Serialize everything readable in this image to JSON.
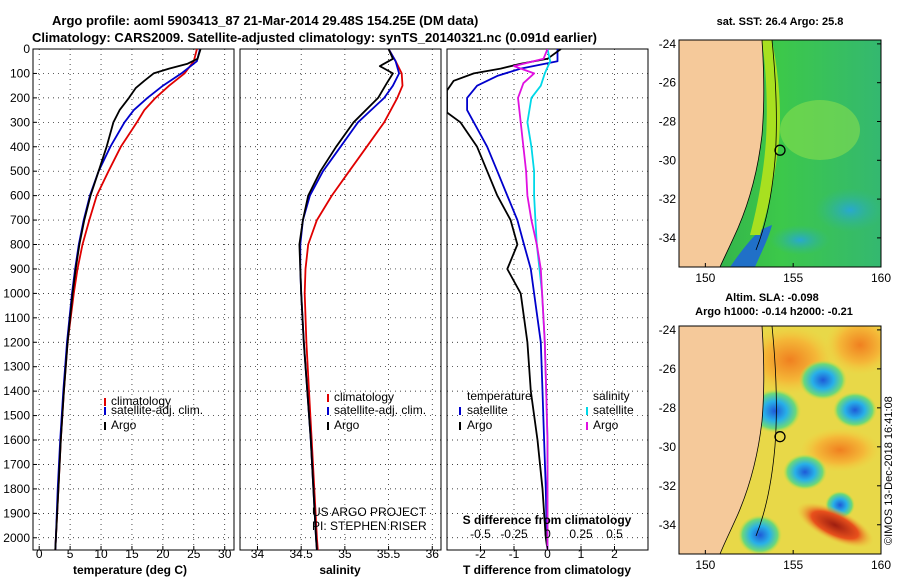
{
  "title_line1": "Argo profile: aoml 5903413_87 21-Mar-2014 29.48S 154.25E (DM data)",
  "title_line2": "Climatology: CARS2009. Satellite-adjusted climatology: synTS_20140321.nc (0.091d earlier)",
  "credit_line1": "US ARGO PROJECT",
  "credit_line2": "PI: STEPHEN RISER",
  "watermark": "©IMOS 13-Dec-2018 16:41:08",
  "colors": {
    "climatology": "#e00000",
    "satellite": "#0000cc",
    "argo": "#000000",
    "sat_salinity": "#00d8e8",
    "argo_salinity": "#e010e0",
    "land": "#f5c99a"
  },
  "chart_data": [
    {
      "type": "line",
      "name": "temperature-panel",
      "xlabel": "temperature (deg C)",
      "ylabel": "",
      "xlim": [
        -1,
        31.5
      ],
      "ylim": [
        2050,
        0
      ],
      "xticks": [
        0,
        5,
        10,
        15,
        20,
        25,
        30
      ],
      "yticks": [
        0,
        100,
        200,
        300,
        400,
        500,
        600,
        700,
        800,
        900,
        1000,
        1100,
        1200,
        1300,
        1400,
        1500,
        1600,
        1700,
        1800,
        1900,
        2000
      ],
      "legend": [
        "climatology",
        "satellite-adj. clim.",
        "Argo"
      ],
      "series": [
        {
          "name": "climatology",
          "color": "#e00000",
          "depth": [
            0,
            50,
            100,
            150,
            200,
            250,
            300,
            400,
            500,
            600,
            700,
            800,
            900,
            1000,
            1200,
            1400,
            1600,
            1800,
            2000,
            2050
          ],
          "values": [
            25.5,
            25.0,
            23.5,
            21.0,
            18.8,
            17.0,
            15.8,
            13.2,
            11.2,
            9.3,
            8.1,
            7.0,
            6.2,
            5.6,
            4.6,
            4.0,
            3.5,
            3.1,
            2.7,
            2.6
          ]
        },
        {
          "name": "satellite-adj. clim.",
          "color": "#0000cc",
          "depth": [
            0,
            50,
            100,
            150,
            200,
            250,
            300,
            400,
            500,
            600,
            700,
            800,
            900,
            1000,
            1200,
            1400,
            1600,
            1800,
            2000,
            2050
          ],
          "values": [
            26.0,
            25.5,
            23.0,
            20.0,
            17.5,
            15.3,
            13.8,
            11.5,
            9.6,
            8.2,
            7.2,
            6.4,
            5.8,
            5.3,
            4.5,
            3.9,
            3.4,
            3.0,
            2.7,
            2.6
          ]
        },
        {
          "name": "Argo",
          "color": "#000000",
          "depth": [
            0,
            40,
            60,
            80,
            100,
            130,
            160,
            200,
            250,
            300,
            400,
            500,
            600,
            700,
            800,
            900,
            1000,
            1200,
            1400,
            1600,
            1800,
            2000,
            2050
          ],
          "values": [
            26.1,
            25.6,
            24.0,
            21.0,
            18.5,
            17.0,
            15.6,
            14.5,
            13.0,
            12.0,
            10.9,
            9.6,
            8.3,
            7.3,
            6.5,
            5.9,
            5.4,
            4.6,
            4.0,
            3.5,
            3.1,
            2.7,
            2.6
          ]
        }
      ]
    },
    {
      "type": "line",
      "name": "salinity-panel",
      "xlabel": "salinity",
      "xlim": [
        33.8,
        36.1
      ],
      "ylim": [
        2050,
        0
      ],
      "xticks": [
        34,
        34.5,
        35,
        35.5,
        36
      ],
      "legend": [
        "climatology",
        "satellite-adj. clim.",
        "Argo"
      ],
      "series": [
        {
          "name": "climatology",
          "color": "#e00000",
          "depth": [
            0,
            50,
            100,
            150,
            200,
            300,
            400,
            500,
            600,
            700,
            800,
            900,
            1000,
            1200,
            1400,
            1600,
            1800,
            2000,
            2050
          ],
          "values": [
            35.5,
            35.58,
            35.65,
            35.66,
            35.6,
            35.45,
            35.25,
            35.05,
            34.85,
            34.68,
            34.58,
            34.55,
            34.54,
            34.56,
            34.59,
            34.62,
            34.65,
            34.68,
            34.69
          ]
        },
        {
          "name": "satellite-adj. clim.",
          "color": "#0000cc",
          "depth": [
            0,
            50,
            100,
            150,
            200,
            300,
            400,
            500,
            600,
            700,
            800,
            900,
            1000,
            1200,
            1400,
            1600,
            1800,
            2000,
            2050
          ],
          "values": [
            35.5,
            35.58,
            35.62,
            35.55,
            35.45,
            35.15,
            34.95,
            34.75,
            34.6,
            34.52,
            34.49,
            34.49,
            34.5,
            34.53,
            34.57,
            34.61,
            34.64,
            34.67,
            34.68
          ]
        },
        {
          "name": "Argo",
          "color": "#000000",
          "depth": [
            0,
            40,
            70,
            100,
            140,
            200,
            300,
            400,
            500,
            600,
            700,
            800,
            900,
            1000,
            1200,
            1400,
            1600,
            1800,
            2000,
            2050
          ],
          "values": [
            35.5,
            35.55,
            35.4,
            35.55,
            35.48,
            35.38,
            35.1,
            34.9,
            34.72,
            34.58,
            34.52,
            34.48,
            34.49,
            34.5,
            34.53,
            34.57,
            34.61,
            34.64,
            34.67,
            34.68
          ]
        }
      ]
    },
    {
      "type": "line",
      "name": "difference-panel",
      "xlabel": "T difference from climatology",
      "toplabel": "S difference from climatology",
      "xlim": [
        -3,
        3
      ],
      "ylim": [
        2050,
        0
      ],
      "xticks": [
        -2,
        -1,
        0,
        1,
        2
      ],
      "topticks": [
        -0.5,
        -0.25,
        0,
        0.25,
        0.5
      ],
      "topticks_text": [
        "-0.5",
        "-0.25",
        "0",
        "0.25",
        "0.5"
      ],
      "legend_left_title": "temperature",
      "legend_right_title": "salinity",
      "legend_left": [
        "satellite",
        "Argo"
      ],
      "legend_right": [
        "satellite",
        "Argo"
      ],
      "series": [
        {
          "name": "temperature satellite",
          "color": "#0000cc",
          "depth": [
            0,
            50,
            80,
            110,
            150,
            200,
            250,
            300,
            400,
            500,
            600,
            700,
            800,
            900,
            1000,
            1200,
            1400,
            1600,
            1800,
            2000,
            2050
          ],
          "values": [
            0.3,
            0.3,
            -0.8,
            -1.5,
            -2.1,
            -2.4,
            -2.4,
            -2.2,
            -1.8,
            -1.5,
            -1.2,
            -0.9,
            -0.7,
            -0.5,
            -0.4,
            -0.2,
            -0.15,
            -0.1,
            -0.05,
            -0.02,
            0
          ]
        },
        {
          "name": "temperature Argo",
          "color": "#000000",
          "depth": [
            0,
            40,
            60,
            80,
            100,
            130,
            170,
            200,
            230,
            260,
            300,
            400,
            500,
            600,
            700,
            800,
            900,
            1000,
            1200,
            1400,
            1600,
            1800,
            1900,
            2000,
            2050
          ],
          "values": [
            0.4,
            0.0,
            -0.8,
            -1.4,
            -2.2,
            -2.8,
            -3.0,
            -3.0,
            -3.0,
            -3.0,
            -2.6,
            -2.1,
            -1.8,
            -1.5,
            -1.1,
            -0.9,
            -1.2,
            -0.8,
            -0.6,
            -0.5,
            -0.3,
            -0.15,
            -0.1,
            -0.05,
            0
          ]
        },
        {
          "name": "salinity satellite",
          "color": "#00d8e8",
          "depth": [
            0,
            50,
            100,
            150,
            200,
            300,
            400,
            500,
            600,
            700,
            800,
            900,
            1000,
            1200,
            1400,
            1600,
            1800,
            2000,
            2050
          ],
          "values": [
            0.0,
            0.02,
            -0.02,
            -0.05,
            -0.12,
            -0.15,
            -0.12,
            -0.1,
            -0.1,
            -0.09,
            -0.08,
            -0.06,
            -0.04,
            -0.02,
            -0.01,
            0,
            0,
            0,
            0
          ]
        },
        {
          "name": "salinity Argo",
          "color": "#e010e0",
          "depth": [
            0,
            40,
            70,
            100,
            140,
            200,
            300,
            400,
            500,
            600,
            700,
            800,
            900,
            1000,
            1200,
            1400,
            1600,
            1800,
            2000,
            2050
          ],
          "values": [
            0.0,
            -0.03,
            -0.25,
            -0.1,
            -0.18,
            -0.22,
            -0.2,
            -0.18,
            -0.16,
            -0.15,
            -0.12,
            -0.08,
            -0.05,
            -0.04,
            -0.02,
            -0.01,
            0,
            0,
            0,
            0
          ]
        }
      ]
    },
    {
      "type": "heatmap",
      "name": "sst-map",
      "title": "sat. SST: 26.4 Argo: 25.8",
      "xlim": [
        148.5,
        160
      ],
      "ylim": [
        -35.5,
        -23.8
      ],
      "xticks": [
        150,
        155,
        160
      ],
      "yticks": [
        -24,
        -26,
        -28,
        -30,
        -32,
        -34
      ],
      "ytick_text": [
        "-24",
        "-26",
        "-28",
        "-30",
        "-32",
        "-34"
      ],
      "float_position": [
        154.25,
        -29.48
      ]
    },
    {
      "type": "heatmap",
      "name": "sla-map",
      "title": "Altim. SLA: -0.098",
      "subtitle": "Argo h1000: -0.14 h2000: -0.21",
      "xlim": [
        148.5,
        160
      ],
      "ylim": [
        -35.5,
        -23.8
      ],
      "xticks": [
        150,
        155,
        160
      ],
      "yticks": [
        -24,
        -26,
        -28,
        -30,
        -32,
        -34
      ],
      "ytick_text": [
        "-24",
        "-26",
        "-28",
        "-30",
        "-32",
        "-34"
      ],
      "float_position": [
        154.25,
        -29.48
      ]
    }
  ]
}
